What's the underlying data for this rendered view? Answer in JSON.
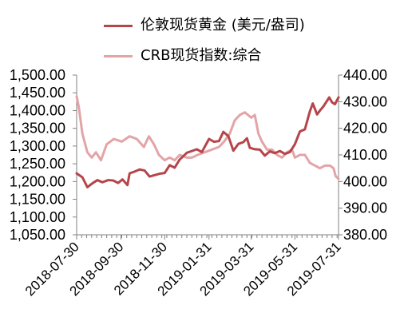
{
  "chart_data": {
    "type": "line",
    "title": "",
    "legend_position": "top",
    "grid": false,
    "x_tick_labels": [
      "2018-07-30",
      "2018-09-30",
      "2018-11-30",
      "2019-01-31",
      "2019-03-31",
      "2019-05-31",
      "2019-07-31"
    ],
    "left_axis": {
      "ylim": [
        1050,
        1500
      ],
      "tick_values": [
        1050,
        1100,
        1150,
        1200,
        1250,
        1300,
        1350,
        1400,
        1450,
        1500
      ],
      "tick_labels": [
        "1,050.00",
        "1,100.00",
        "1,150.00",
        "1,200.00",
        "1,250.00",
        "1,300.00",
        "1,350.00",
        "1,400.00",
        "1,450.00",
        "1,500.00"
      ]
    },
    "right_axis": {
      "ylim": [
        380,
        440
      ],
      "tick_values": [
        380,
        390,
        400,
        410,
        420,
        430,
        440
      ],
      "tick_labels": [
        "380.00",
        "390.00",
        "400.00",
        "410.00",
        "420.00",
        "430.00",
        "440.00"
      ]
    },
    "series": [
      {
        "name": "伦敦现货黄金 (美元/盎司)",
        "axis": "left",
        "color": "#B5454A",
        "points": [
          [
            "2018-07-30",
            1223
          ],
          [
            "2018-08-07",
            1212
          ],
          [
            "2018-08-14",
            1184
          ],
          [
            "2018-08-21",
            1195
          ],
          [
            "2018-08-28",
            1204
          ],
          [
            "2018-09-04",
            1198
          ],
          [
            "2018-09-12",
            1204
          ],
          [
            "2018-09-19",
            1203
          ],
          [
            "2018-09-26",
            1196
          ],
          [
            "2018-10-02",
            1206
          ],
          [
            "2018-10-09",
            1190
          ],
          [
            "2018-10-12",
            1223
          ],
          [
            "2018-10-19",
            1228
          ],
          [
            "2018-10-26",
            1234
          ],
          [
            "2018-11-02",
            1231
          ],
          [
            "2018-11-09",
            1214
          ],
          [
            "2018-11-16",
            1218
          ],
          [
            "2018-11-23",
            1222
          ],
          [
            "2018-11-30",
            1224
          ],
          [
            "2018-12-07",
            1246
          ],
          [
            "2018-12-14",
            1239
          ],
          [
            "2018-12-21",
            1262
          ],
          [
            "2018-12-31",
            1281
          ],
          [
            "2019-01-07",
            1286
          ],
          [
            "2019-01-14",
            1291
          ],
          [
            "2019-01-21",
            1283
          ],
          [
            "2019-01-31",
            1320
          ],
          [
            "2019-02-07",
            1312
          ],
          [
            "2019-02-14",
            1314
          ],
          [
            "2019-02-20",
            1340
          ],
          [
            "2019-02-27",
            1328
          ],
          [
            "2019-03-06",
            1287
          ],
          [
            "2019-03-13",
            1306
          ],
          [
            "2019-03-20",
            1311
          ],
          [
            "2019-03-25",
            1322
          ],
          [
            "2019-03-29",
            1295
          ],
          [
            "2019-04-05",
            1291
          ],
          [
            "2019-04-12",
            1290
          ],
          [
            "2019-04-19",
            1273
          ],
          [
            "2019-04-26",
            1285
          ],
          [
            "2019-05-03",
            1280
          ],
          [
            "2019-05-10",
            1286
          ],
          [
            "2019-05-17",
            1278
          ],
          [
            "2019-05-24",
            1283
          ],
          [
            "2019-05-31",
            1305
          ],
          [
            "2019-06-07",
            1341
          ],
          [
            "2019-06-14",
            1347
          ],
          [
            "2019-06-21",
            1398
          ],
          [
            "2019-06-25",
            1420
          ],
          [
            "2019-07-01",
            1389
          ],
          [
            "2019-07-05",
            1400
          ],
          [
            "2019-07-10",
            1412
          ],
          [
            "2019-07-18",
            1437
          ],
          [
            "2019-07-22",
            1423
          ],
          [
            "2019-07-26",
            1418
          ],
          [
            "2019-07-31",
            1437
          ]
        ]
      },
      {
        "name": "CRB现货指数:综合",
        "axis": "right",
        "color": "#E3A4A7",
        "points": [
          [
            "2018-07-30",
            432
          ],
          [
            "2018-08-02",
            428
          ],
          [
            "2018-08-07",
            418
          ],
          [
            "2018-08-14",
            411
          ],
          [
            "2018-08-20",
            409
          ],
          [
            "2018-08-26",
            411
          ],
          [
            "2018-09-02",
            408
          ],
          [
            "2018-09-10",
            414
          ],
          [
            "2018-09-20",
            416
          ],
          [
            "2018-10-01",
            415
          ],
          [
            "2018-10-12",
            417
          ],
          [
            "2018-10-22",
            416
          ],
          [
            "2018-11-01",
            413
          ],
          [
            "2018-11-08",
            417
          ],
          [
            "2018-11-15",
            414
          ],
          [
            "2018-11-22",
            410
          ],
          [
            "2018-11-30",
            408
          ],
          [
            "2018-12-07",
            409
          ],
          [
            "2018-12-14",
            408
          ],
          [
            "2018-12-21",
            410
          ],
          [
            "2018-12-31",
            409
          ],
          [
            "2019-01-07",
            409
          ],
          [
            "2019-01-15",
            410
          ],
          [
            "2019-01-25",
            411
          ],
          [
            "2019-02-04",
            412
          ],
          [
            "2019-02-14",
            413
          ],
          [
            "2019-02-21",
            415
          ],
          [
            "2019-03-01",
            418
          ],
          [
            "2019-03-08",
            423
          ],
          [
            "2019-03-15",
            425
          ],
          [
            "2019-03-22",
            426
          ],
          [
            "2019-03-31",
            424
          ],
          [
            "2019-04-05",
            425
          ],
          [
            "2019-04-10",
            418
          ],
          [
            "2019-04-15",
            415
          ],
          [
            "2019-04-22",
            412
          ],
          [
            "2019-04-29",
            412
          ],
          [
            "2019-05-06",
            410
          ],
          [
            "2019-05-13",
            409
          ],
          [
            "2019-05-20",
            411
          ],
          [
            "2019-05-27",
            412
          ],
          [
            "2019-05-31",
            409
          ],
          [
            "2019-06-07",
            410
          ],
          [
            "2019-06-14",
            410
          ],
          [
            "2019-06-21",
            407
          ],
          [
            "2019-06-28",
            406
          ],
          [
            "2019-07-05",
            405
          ],
          [
            "2019-07-12",
            406
          ],
          [
            "2019-07-19",
            406
          ],
          [
            "2019-07-24",
            405
          ],
          [
            "2019-07-27",
            402
          ],
          [
            "2019-07-31",
            401
          ]
        ]
      }
    ]
  }
}
